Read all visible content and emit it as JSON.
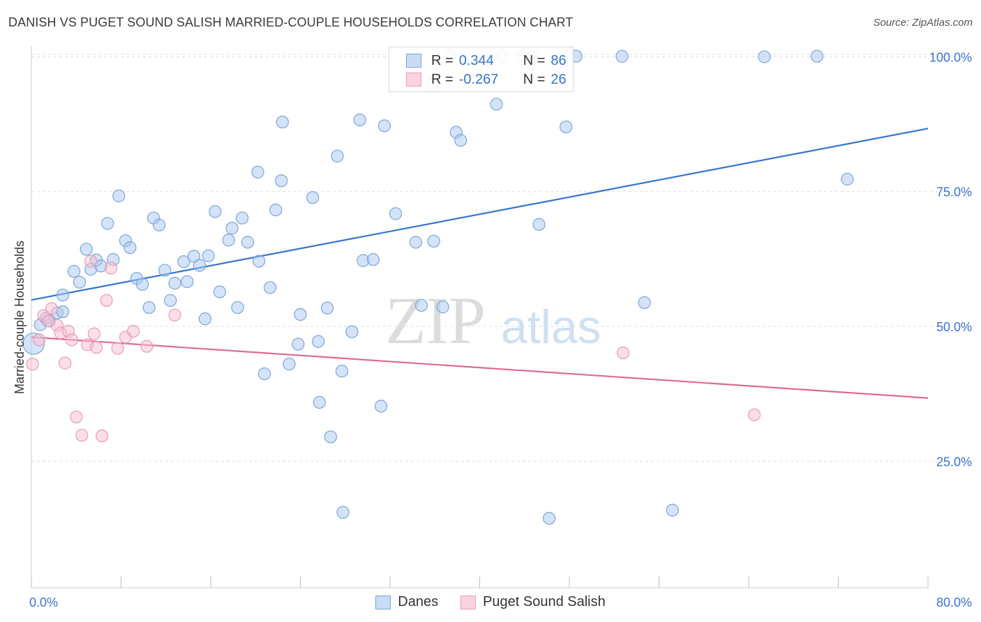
{
  "header": {
    "title": "DANISH VS PUGET SOUND SALISH MARRIED-COUPLE HOUSEHOLDS CORRELATION CHART",
    "source": "Source: ZipAtlas.com"
  },
  "watermark": {
    "zip": "ZIP",
    "atlas": "atlas"
  },
  "legend": {
    "rows": [
      {
        "r_label": "R =",
        "r_value": "0.344",
        "n_label": "N =",
        "n_value": "86"
      },
      {
        "r_label": "R =",
        "r_value": "-0.267",
        "n_label": "N =",
        "n_value": "26"
      }
    ]
  },
  "colors": {
    "danes_fill": "#aac8ef",
    "danes_stroke": "#7aa6dc",
    "danes_line": "#3474d0",
    "salish_fill": "#f7c0d0",
    "salish_stroke": "#e99ab3",
    "salish_line": "#e06a94",
    "tick_label": "#3a73c8",
    "grid": "#dddddd"
  },
  "chart_data": {
    "type": "scatter",
    "title": "DANISH VS PUGET SOUND SALISH MARRIED-COUPLE HOUSEHOLDS CORRELATION CHART",
    "xlabel": "",
    "ylabel": "Married-couple Households",
    "xlim": [
      0,
      80
    ],
    "ylim": [
      1.5,
      102
    ],
    "x_tick_labels": [
      {
        "value": 0,
        "label": "0.0%"
      },
      {
        "value": 80,
        "label": "80.0%"
      }
    ],
    "y_tick_labels": [
      {
        "value": 100,
        "label": "100.0%"
      },
      {
        "value": 75,
        "label": "75.0%"
      },
      {
        "value": 50,
        "label": "50.0%"
      },
      {
        "value": 25,
        "label": "25.0%"
      }
    ],
    "y_gridlines": [
      100,
      75,
      50,
      25
    ],
    "grid": true,
    "legend_placement": "bottom-center",
    "series": [
      {
        "name": "Danes",
        "r": 0.344,
        "n": 86,
        "trend": {
          "x": [
            0,
            80
          ],
          "y": [
            54.9,
            86.7
          ]
        },
        "points": [
          [
            0.2,
            46.8,
            1.6
          ],
          [
            0.8,
            50.3,
            0.9
          ],
          [
            1.3,
            51.5,
            0.9
          ],
          [
            1.6,
            51.0,
            0.9
          ],
          [
            2.3,
            52.5,
            0.9
          ],
          [
            2.8,
            52.7,
            0.9
          ],
          [
            2.8,
            55.8,
            0.9
          ],
          [
            3.8,
            60.2,
            0.9
          ],
          [
            4.3,
            58.2,
            0.9
          ],
          [
            4.9,
            64.3,
            0.9
          ],
          [
            5.3,
            60.6,
            0.9
          ],
          [
            5.8,
            62.3,
            0.9
          ],
          [
            6.2,
            61.2,
            0.9
          ],
          [
            6.8,
            69.1,
            0.9
          ],
          [
            7.3,
            62.4,
            0.9
          ],
          [
            7.8,
            74.2,
            0.9
          ],
          [
            8.4,
            65.9,
            0.9
          ],
          [
            8.8,
            64.6,
            0.9
          ],
          [
            9.4,
            58.9,
            0.9
          ],
          [
            9.9,
            57.8,
            0.9
          ],
          [
            10.5,
            53.5,
            0.9
          ],
          [
            10.9,
            70.1,
            0.9
          ],
          [
            11.4,
            68.8,
            0.9
          ],
          [
            11.9,
            60.4,
            0.9
          ],
          [
            12.4,
            54.8,
            0.9
          ],
          [
            12.8,
            58.0,
            0.9
          ],
          [
            13.6,
            62.0,
            0.9
          ],
          [
            13.9,
            58.3,
            0.9
          ],
          [
            14.5,
            63.0,
            0.9
          ],
          [
            15.0,
            61.3,
            0.9
          ],
          [
            15.5,
            51.4,
            0.9
          ],
          [
            15.8,
            63.1,
            0.9
          ],
          [
            16.4,
            71.3,
            0.9
          ],
          [
            16.8,
            56.4,
            0.9
          ],
          [
            17.6,
            66.0,
            0.9
          ],
          [
            17.9,
            68.2,
            0.9
          ],
          [
            18.4,
            53.5,
            0.9
          ],
          [
            18.8,
            70.1,
            0.9
          ],
          [
            19.3,
            65.6,
            0.9
          ],
          [
            20.2,
            78.6,
            0.9
          ],
          [
            20.3,
            62.1,
            0.9
          ],
          [
            20.8,
            41.2,
            0.9
          ],
          [
            21.3,
            57.2,
            0.9
          ],
          [
            21.8,
            71.6,
            0.9
          ],
          [
            22.3,
            77.0,
            0.9
          ],
          [
            22.4,
            87.9,
            0.9
          ],
          [
            23.0,
            43.0,
            0.9
          ],
          [
            23.8,
            46.7,
            0.9
          ],
          [
            24.0,
            52.2,
            0.9
          ],
          [
            25.1,
            73.9,
            0.9
          ],
          [
            25.6,
            47.2,
            0.9
          ],
          [
            25.7,
            35.9,
            0.9
          ],
          [
            26.4,
            53.4,
            0.9
          ],
          [
            26.7,
            29.5,
            0.9
          ],
          [
            27.3,
            81.6,
            0.9
          ],
          [
            27.7,
            41.7,
            0.9
          ],
          [
            27.8,
            15.5,
            0.9
          ],
          [
            28.6,
            49.0,
            0.9
          ],
          [
            29.3,
            88.3,
            0.9
          ],
          [
            29.6,
            62.2,
            0.9
          ],
          [
            30.5,
            62.4,
            0.9
          ],
          [
            31.2,
            35.2,
            0.9
          ],
          [
            31.5,
            87.2,
            0.9
          ],
          [
            32.5,
            70.9,
            0.9
          ],
          [
            34.3,
            65.6,
            0.9
          ],
          [
            34.8,
            53.9,
            0.9
          ],
          [
            35.8,
            95.0,
            0.9
          ],
          [
            35.9,
            65.8,
            0.9
          ],
          [
            36.7,
            53.6,
            0.9
          ],
          [
            37.3,
            100.2,
            0.9
          ],
          [
            37.9,
            86.0,
            0.9
          ],
          [
            38.3,
            84.5,
            0.9
          ],
          [
            41.5,
            91.2,
            0.9
          ],
          [
            42.0,
            100.1,
            0.9
          ],
          [
            43.7,
            100.0,
            0.9
          ],
          [
            44.7,
            100.0,
            0.9
          ],
          [
            45.3,
            68.9,
            0.9
          ],
          [
            46.2,
            14.4,
            0.9
          ],
          [
            47.7,
            87.0,
            0.9
          ],
          [
            48.6,
            100.1,
            0.9
          ],
          [
            52.7,
            100.1,
            0.9
          ],
          [
            54.7,
            54.4,
            0.9
          ],
          [
            57.2,
            15.9,
            0.9
          ],
          [
            65.4,
            100.0,
            0.9
          ],
          [
            70.1,
            100.1,
            0.9
          ],
          [
            72.8,
            77.3,
            0.9
          ]
        ]
      },
      {
        "name": "Puget Sound Salish",
        "r": -0.267,
        "n": 26,
        "trend": {
          "x": [
            0,
            80
          ],
          "y": [
            48.0,
            36.7
          ]
        },
        "points": [
          [
            0.1,
            43.0
          ],
          [
            0.7,
            47.5
          ],
          [
            1.1,
            52.0
          ],
          [
            1.5,
            51.0
          ],
          [
            1.8,
            53.3
          ],
          [
            2.3,
            50.2
          ],
          [
            2.6,
            48.8
          ],
          [
            3.0,
            43.2
          ],
          [
            3.3,
            49.1
          ],
          [
            3.6,
            47.5
          ],
          [
            4.0,
            33.2
          ],
          [
            4.5,
            29.8
          ],
          [
            5.0,
            46.6
          ],
          [
            5.3,
            62.1
          ],
          [
            5.6,
            48.6
          ],
          [
            5.8,
            46.1
          ],
          [
            6.3,
            29.7
          ],
          [
            6.7,
            54.8
          ],
          [
            7.1,
            60.8
          ],
          [
            7.7,
            45.9
          ],
          [
            8.4,
            48.0
          ],
          [
            9.1,
            49.1
          ],
          [
            10.3,
            46.3
          ],
          [
            12.8,
            52.1
          ],
          [
            52.8,
            45.1
          ],
          [
            64.5,
            33.6
          ]
        ]
      }
    ]
  },
  "bottom_legend": {
    "items": [
      {
        "label": "Danes"
      },
      {
        "label": "Puget Sound Salish"
      }
    ]
  }
}
